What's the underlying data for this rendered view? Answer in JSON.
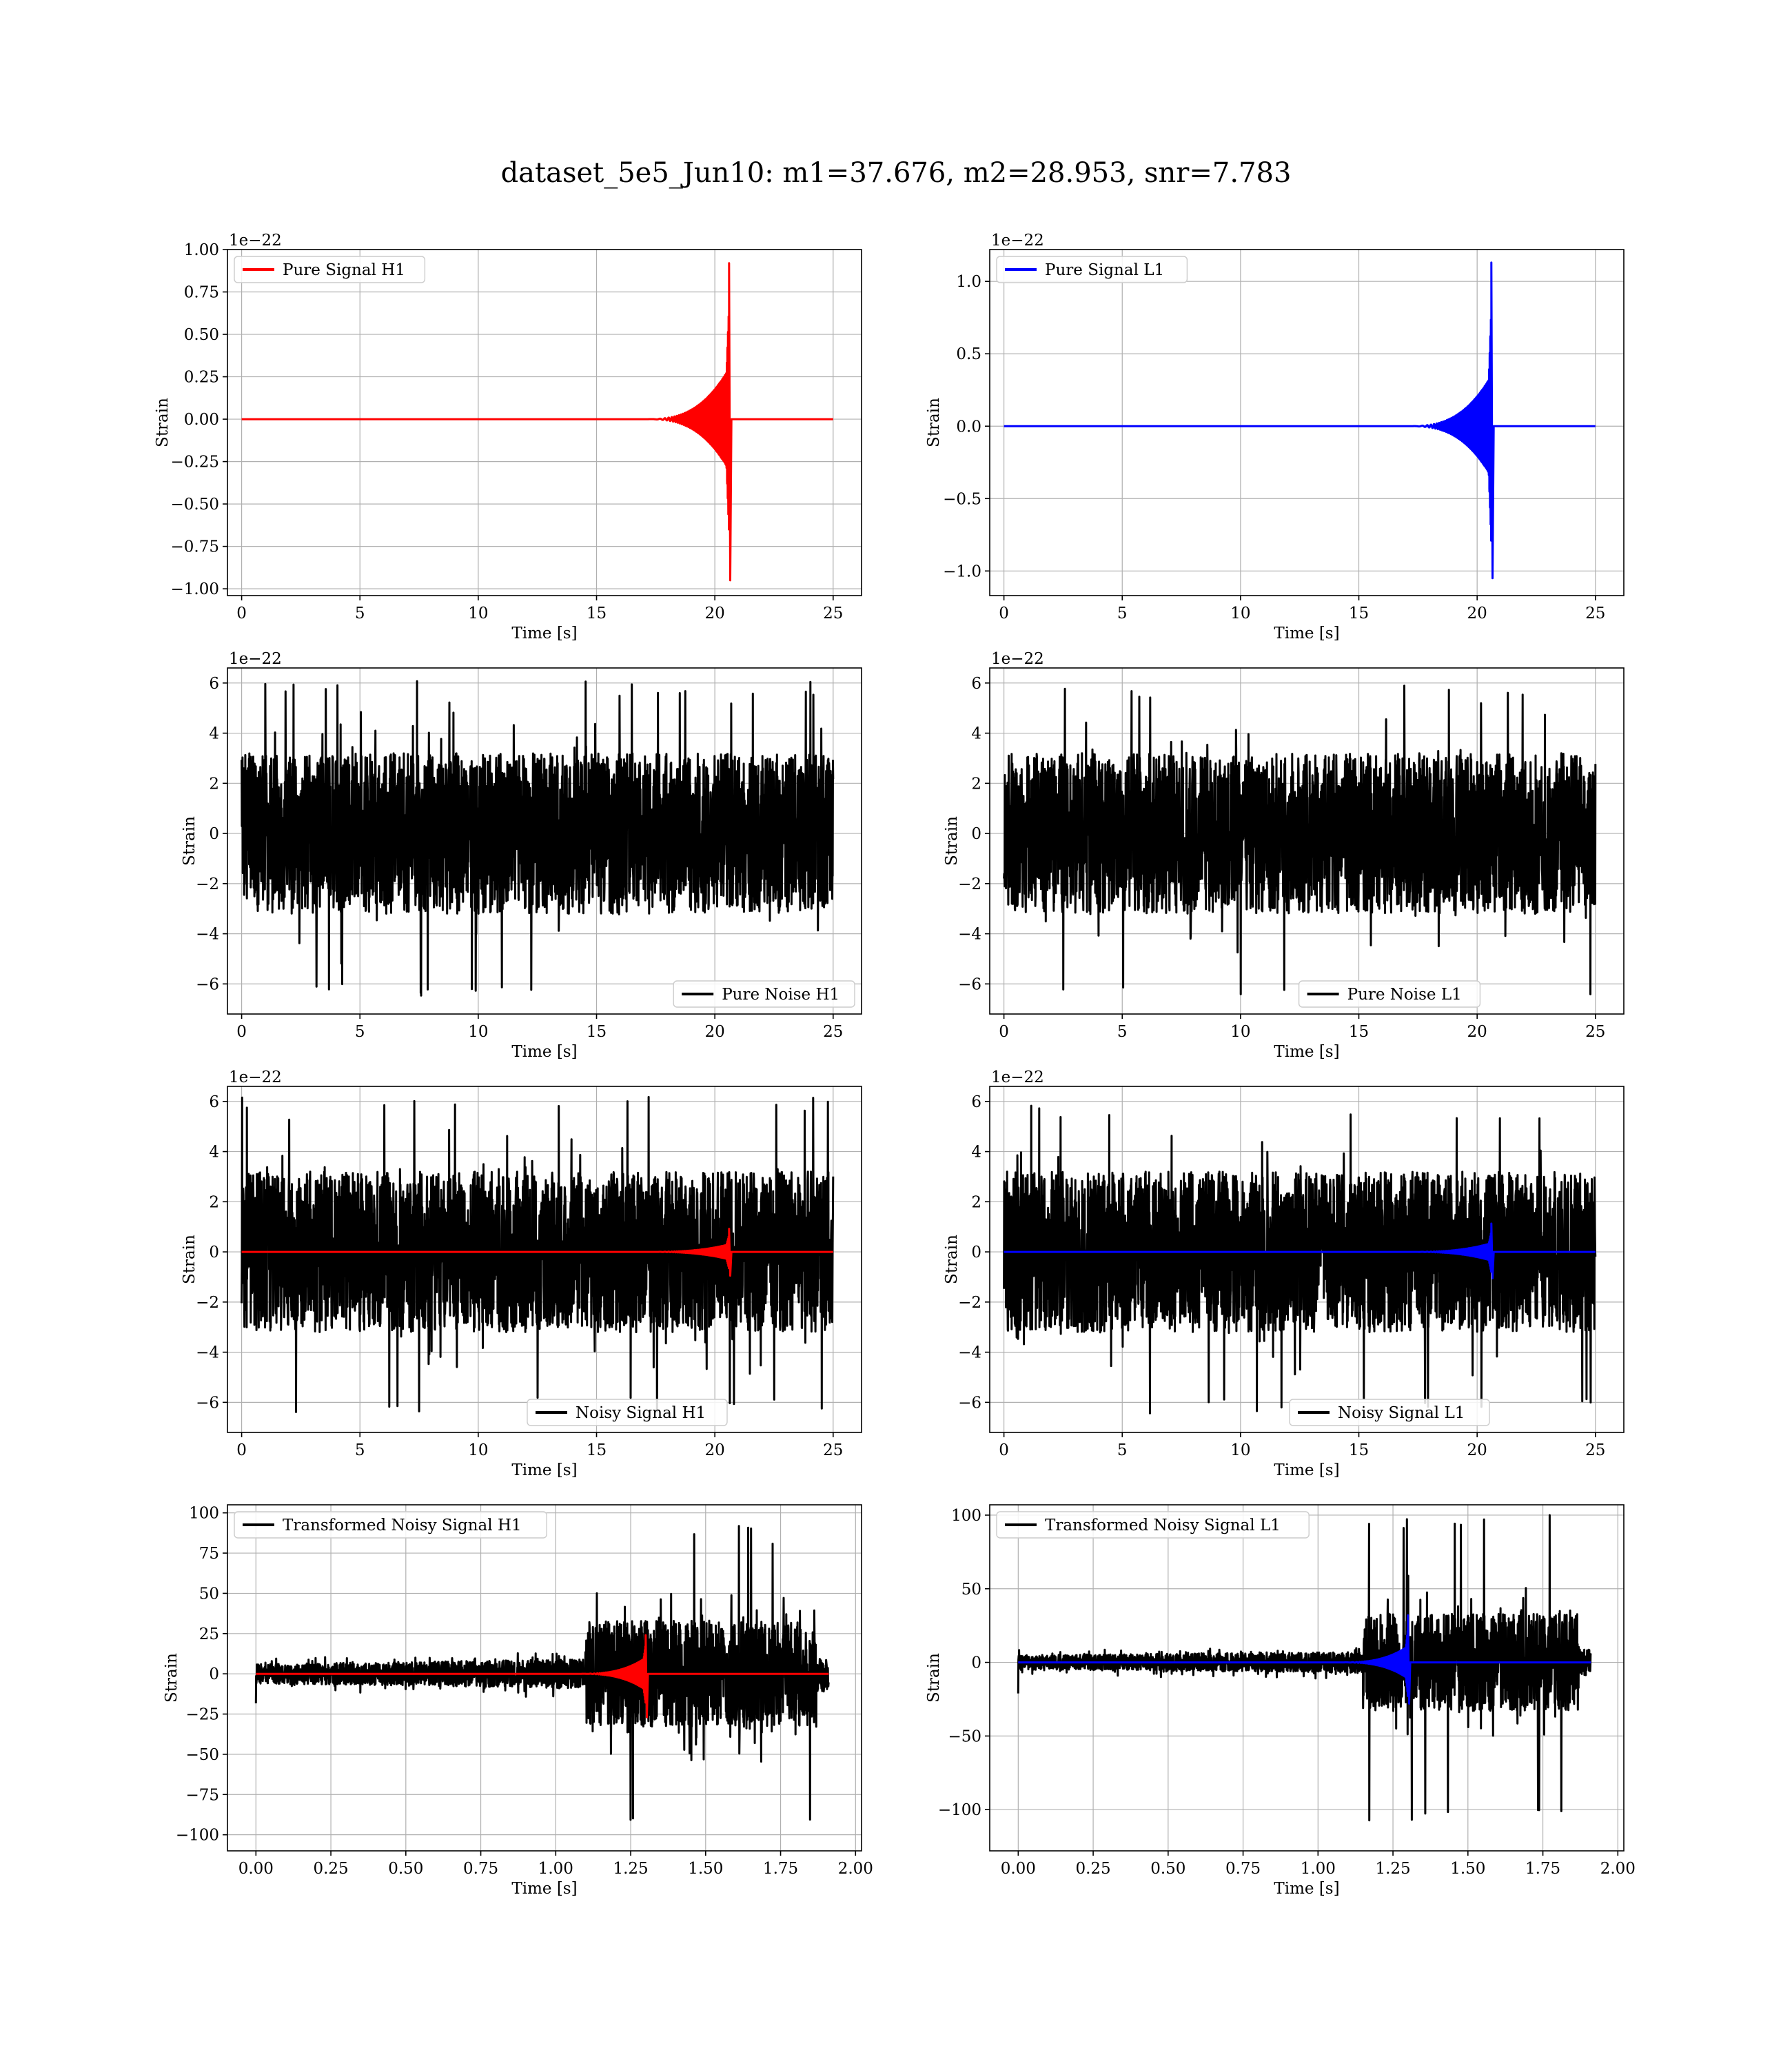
{
  "figure": {
    "title": "dataset_5e5_Jun10: m1=37.676, m2=28.953, snr=7.783"
  },
  "colors": {
    "h1": "#ff0000",
    "l1": "#0000ff",
    "noise": "#000000",
    "grid": "#b0b0b0"
  },
  "chart_data": [
    {
      "id": "pure-signal-h1",
      "type": "line",
      "xlabel": "Time [s]",
      "ylabel": "Strain",
      "offset_text": "1e−22",
      "xlim": [
        -0.6,
        26.2
      ],
      "ylim": [
        -1.04,
        1.0
      ],
      "xticks": [
        0,
        5,
        10,
        15,
        20,
        25
      ],
      "xtick_labels": [
        "0",
        "5",
        "10",
        "15",
        "20",
        "25"
      ],
      "yticks": [
        -1.0,
        -0.75,
        -0.5,
        -0.25,
        0.0,
        0.25,
        0.5,
        0.75,
        1.0
      ],
      "ytick_labels": [
        "−1.00",
        "−0.75",
        "−0.50",
        "−0.25",
        "0.00",
        "0.25",
        "0.50",
        "0.75",
        "1.00"
      ],
      "legend": {
        "position": "upper-left"
      },
      "grid": true,
      "series": [
        {
          "name": "Pure Signal H1",
          "kind": "chirp",
          "color": "#ff0000",
          "x_range": [
            0,
            25
          ],
          "baseline": 0.0,
          "merger_time": 20.6,
          "peak_pos": 0.92,
          "peak_neg": -0.95,
          "inspiral_amp": 0.3
        }
      ]
    },
    {
      "id": "pure-signal-l1",
      "type": "line",
      "xlabel": "Time [s]",
      "ylabel": "Strain",
      "offset_text": "1e−22",
      "xlim": [
        -0.6,
        26.2
      ],
      "ylim": [
        -1.17,
        1.22
      ],
      "xticks": [
        0,
        5,
        10,
        15,
        20,
        25
      ],
      "xtick_labels": [
        "0",
        "5",
        "10",
        "15",
        "20",
        "25"
      ],
      "yticks": [
        -1.0,
        -0.5,
        0.0,
        0.5,
        1.0
      ],
      "ytick_labels": [
        "−1.0",
        "−0.5",
        "0.0",
        "0.5",
        "1.0"
      ],
      "legend": {
        "position": "upper-left"
      },
      "grid": true,
      "series": [
        {
          "name": "Pure Signal L1",
          "kind": "chirp",
          "color": "#0000ff",
          "x_range": [
            0,
            25
          ],
          "baseline": 0.0,
          "merger_time": 20.6,
          "peak_pos": 1.13,
          "peak_neg": -1.05,
          "inspiral_amp": 0.35
        }
      ]
    },
    {
      "id": "pure-noise-h1",
      "type": "line",
      "xlabel": "Time [s]",
      "ylabel": "Strain",
      "offset_text": "1e−22",
      "xlim": [
        -0.6,
        26.2
      ],
      "ylim": [
        -7.2,
        6.6
      ],
      "xticks": [
        0,
        5,
        10,
        15,
        20,
        25
      ],
      "xtick_labels": [
        "0",
        "5",
        "10",
        "15",
        "20",
        "25"
      ],
      "yticks": [
        -6,
        -4,
        -2,
        0,
        2,
        4,
        6
      ],
      "ytick_labels": [
        "−6",
        "−4",
        "−2",
        "0",
        "2",
        "4",
        "6"
      ],
      "legend": {
        "position": "lower-right"
      },
      "grid": true,
      "series": [
        {
          "name": "Pure Noise H1",
          "kind": "noise",
          "color": "#000000",
          "x_range": [
            0,
            25
          ],
          "band": 3.2,
          "max": 6.1,
          "min": -6.5
        }
      ]
    },
    {
      "id": "pure-noise-l1",
      "type": "line",
      "xlabel": "Time [s]",
      "ylabel": "Strain",
      "offset_text": "1e−22",
      "xlim": [
        -0.6,
        26.2
      ],
      "ylim": [
        -7.2,
        6.6
      ],
      "xticks": [
        0,
        5,
        10,
        15,
        20,
        25
      ],
      "xtick_labels": [
        "0",
        "5",
        "10",
        "15",
        "20",
        "25"
      ],
      "yticks": [
        -6,
        -4,
        -2,
        0,
        2,
        4,
        6
      ],
      "ytick_labels": [
        "−6",
        "−4",
        "−2",
        "0",
        "2",
        "4",
        "6"
      ],
      "legend": {
        "position": "lower-center"
      },
      "grid": true,
      "series": [
        {
          "name": "Pure Noise L1",
          "kind": "noise",
          "color": "#000000",
          "x_range": [
            0,
            25
          ],
          "band": 3.2,
          "max": 6.0,
          "min": -6.6
        }
      ]
    },
    {
      "id": "noisy-signal-h1",
      "type": "line",
      "xlabel": "Time [s]",
      "ylabel": "Strain",
      "offset_text": "1e−22",
      "xlim": [
        -0.6,
        26.2
      ],
      "ylim": [
        -7.2,
        6.6
      ],
      "xticks": [
        0,
        5,
        10,
        15,
        20,
        25
      ],
      "xtick_labels": [
        "0",
        "5",
        "10",
        "15",
        "20",
        "25"
      ],
      "yticks": [
        -6,
        -4,
        -2,
        0,
        2,
        4,
        6
      ],
      "ytick_labels": [
        "−6",
        "−4",
        "−2",
        "0",
        "2",
        "4",
        "6"
      ],
      "legend": {
        "position": "lower-center"
      },
      "grid": true,
      "series": [
        {
          "name": "Noisy Signal H1",
          "kind": "noise",
          "color": "#000000",
          "x_range": [
            0,
            25
          ],
          "band": 3.2,
          "max": 6.2,
          "min": -6.4
        },
        {
          "name": "",
          "kind": "chirp",
          "color": "#ff0000",
          "x_range": [
            0,
            25
          ],
          "baseline": 0.0,
          "merger_time": 20.6,
          "peak_pos": 0.92,
          "peak_neg": -0.95,
          "inspiral_amp": 0.3
        }
      ]
    },
    {
      "id": "noisy-signal-l1",
      "type": "line",
      "xlabel": "Time [s]",
      "ylabel": "Strain",
      "offset_text": "1e−22",
      "xlim": [
        -0.6,
        26.2
      ],
      "ylim": [
        -7.2,
        6.6
      ],
      "xticks": [
        0,
        5,
        10,
        15,
        20,
        25
      ],
      "xtick_labels": [
        "0",
        "5",
        "10",
        "15",
        "20",
        "25"
      ],
      "yticks": [
        -6,
        -4,
        -2,
        0,
        2,
        4,
        6
      ],
      "ytick_labels": [
        "−6",
        "−4",
        "−2",
        "0",
        "2",
        "4",
        "6"
      ],
      "legend": {
        "position": "lower-center"
      },
      "grid": true,
      "series": [
        {
          "name": "Noisy Signal L1",
          "kind": "noise",
          "color": "#000000",
          "x_range": [
            0,
            25
          ],
          "band": 3.2,
          "max": 5.9,
          "min": -6.5
        },
        {
          "name": "",
          "kind": "chirp",
          "color": "#0000ff",
          "x_range": [
            0,
            25
          ],
          "baseline": 0.0,
          "merger_time": 20.6,
          "peak_pos": 1.13,
          "peak_neg": -1.05,
          "inspiral_amp": 0.35
        }
      ]
    },
    {
      "id": "transformed-noisy-signal-h1",
      "type": "line",
      "xlabel": "Time [s]",
      "ylabel": "Strain",
      "offset_text": "",
      "xlim": [
        -0.095,
        2.02
      ],
      "ylim": [
        -110,
        105
      ],
      "xticks": [
        0.0,
        0.25,
        0.5,
        0.75,
        1.0,
        1.25,
        1.5,
        1.75,
        2.0
      ],
      "xtick_labels": [
        "0.00",
        "0.25",
        "0.50",
        "0.75",
        "1.00",
        "1.25",
        "1.50",
        "1.75",
        "2.00"
      ],
      "yticks": [
        -100,
        -75,
        -50,
        -25,
        0,
        25,
        50,
        75,
        100
      ],
      "ytick_labels": [
        "−100",
        "−75",
        "−50",
        "−25",
        "0",
        "25",
        "50",
        "75",
        "100"
      ],
      "legend": {
        "position": "upper-left"
      },
      "grid": true,
      "series": [
        {
          "name": "Transformed Noisy Signal H1",
          "kind": "transformed-noise",
          "color": "#000000",
          "x_range": [
            0,
            1.91
          ],
          "quiet_band": 10,
          "loud_start": 1.1,
          "loud_end": 1.87,
          "loud_band": 55,
          "max": 95,
          "min": -102
        },
        {
          "name": "",
          "kind": "chirp",
          "color": "#ff0000",
          "x_range": [
            0,
            1.91
          ],
          "baseline": 0.0,
          "merger_time": 1.3,
          "peak_pos": 24,
          "peak_neg": -27,
          "inspiral_amp": 10
        }
      ]
    },
    {
      "id": "transformed-noisy-signal-l1",
      "type": "line",
      "xlabel": "Time [s]",
      "ylabel": "Strain",
      "offset_text": "",
      "xlim": [
        -0.095,
        2.02
      ],
      "ylim": [
        -128,
        107
      ],
      "xticks": [
        0.0,
        0.25,
        0.5,
        0.75,
        1.0,
        1.25,
        1.5,
        1.75,
        2.0
      ],
      "xtick_labels": [
        "0.00",
        "0.25",
        "0.50",
        "0.75",
        "1.00",
        "1.25",
        "1.50",
        "1.75",
        "2.00"
      ],
      "yticks": [
        -100,
        -50,
        0,
        50,
        100
      ],
      "ytick_labels": [
        "−100",
        "−50",
        "0",
        "50",
        "100"
      ],
      "legend": {
        "position": "upper-left"
      },
      "grid": true,
      "series": [
        {
          "name": "Transformed Noisy Signal L1",
          "kind": "transformed-noise",
          "color": "#000000",
          "x_range": [
            0,
            1.91
          ],
          "quiet_band": 8,
          "loud_start": 1.15,
          "loud_end": 1.87,
          "loud_band": 55,
          "max": 100,
          "min": -117
        },
        {
          "name": "",
          "kind": "chirp",
          "color": "#0000ff",
          "x_range": [
            0,
            1.91
          ],
          "baseline": 0.0,
          "merger_time": 1.3,
          "peak_pos": 32,
          "peak_neg": -28,
          "inspiral_amp": 11
        }
      ]
    }
  ]
}
